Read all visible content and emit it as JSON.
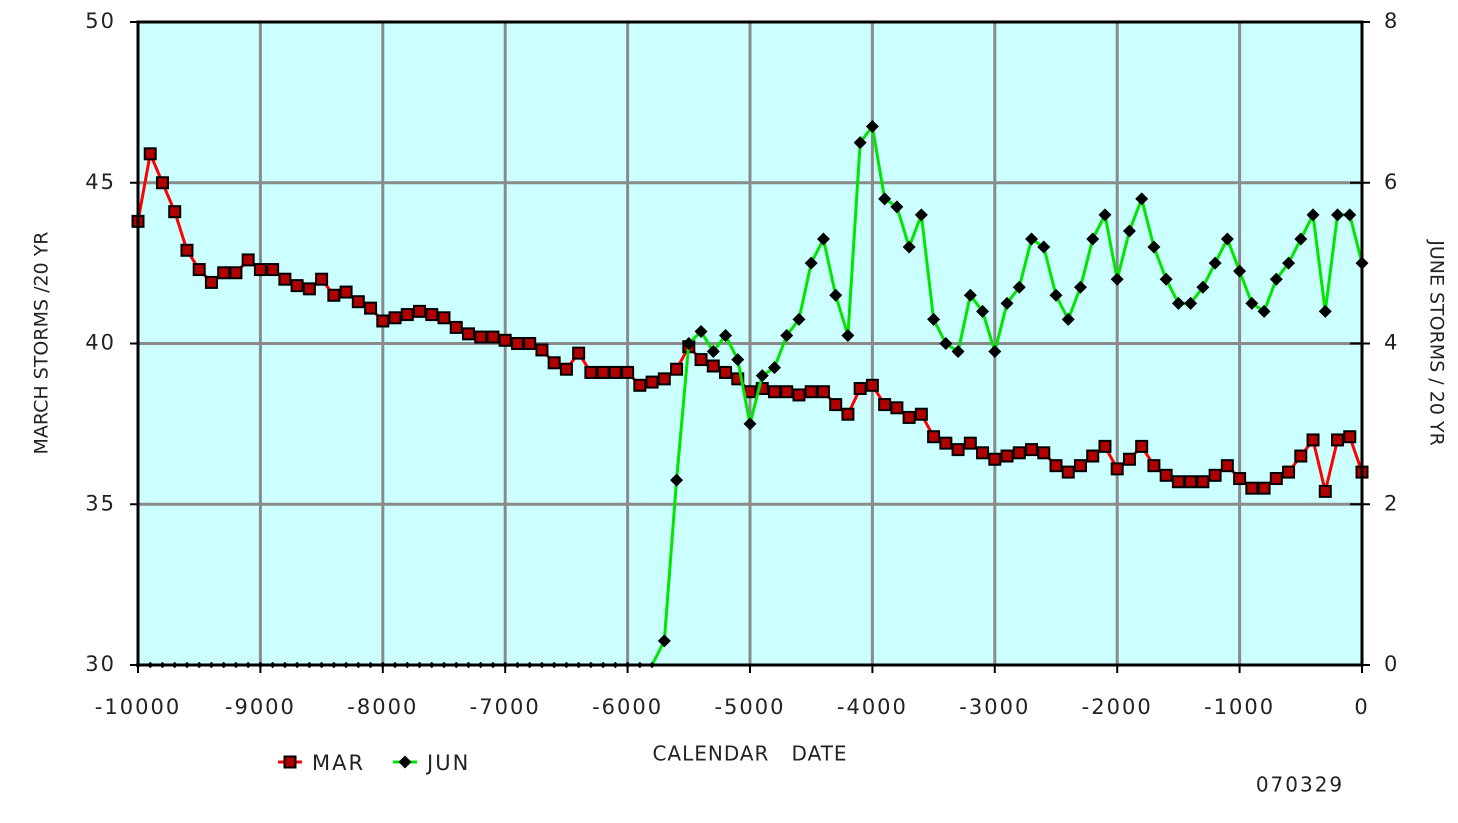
{
  "chart_data": {
    "type": "line",
    "xlabel": "CALENDAR   DATE",
    "ylabel": "MARCH STORMS /20 YR",
    "y2label": "JUNE STORMS / 20 YR",
    "annotation": "070329",
    "x": [
      -10000,
      -9900,
      -9800,
      -9700,
      -9600,
      -9500,
      -9400,
      -9300,
      -9200,
      -9100,
      -9000,
      -8900,
      -8800,
      -8700,
      -8600,
      -8500,
      -8400,
      -8300,
      -8200,
      -8100,
      -8000,
      -7900,
      -7800,
      -7700,
      -7600,
      -7500,
      -7400,
      -7300,
      -7200,
      -7100,
      -7000,
      -6900,
      -6800,
      -6700,
      -6600,
      -6500,
      -6400,
      -6300,
      -6200,
      -6100,
      -6000,
      -5900,
      -5800,
      -5700,
      -5600,
      -5500,
      -5400,
      -5300,
      -5200,
      -5100,
      -5000,
      -4900,
      -4800,
      -4700,
      -4600,
      -4500,
      -4400,
      -4300,
      -4200,
      -4100,
      -4000,
      -3900,
      -3800,
      -3700,
      -3600,
      -3500,
      -3400,
      -3300,
      -3200,
      -3100,
      -3000,
      -2900,
      -2800,
      -2700,
      -2600,
      -2500,
      -2400,
      -2300,
      -2200,
      -2100,
      -2000,
      -1900,
      -1800,
      -1700,
      -1600,
      -1500,
      -1400,
      -1300,
      -1200,
      -1100,
      -1000,
      -900,
      -800,
      -700,
      -600,
      -500,
      -400,
      -300,
      -200,
      -100,
      0
    ],
    "series": [
      {
        "name": "MAR",
        "color": "#ff0000",
        "marker_color": "#b00000",
        "marker": "square",
        "values": [
          43.8,
          45.9,
          45.0,
          44.1,
          42.9,
          42.3,
          41.9,
          42.2,
          42.2,
          42.6,
          42.3,
          42.3,
          42.0,
          41.8,
          41.7,
          42.0,
          41.5,
          41.6,
          41.3,
          41.1,
          40.7,
          40.8,
          40.9,
          41.0,
          40.9,
          40.8,
          40.5,
          40.3,
          40.2,
          40.2,
          40.1,
          40.0,
          40.0,
          39.8,
          39.4,
          39.2,
          39.7,
          39.1,
          39.1,
          39.1,
          39.1,
          38.7,
          38.8,
          38.9,
          39.2,
          39.9,
          39.5,
          39.3,
          39.1,
          38.9,
          38.5,
          38.6,
          38.5,
          38.5,
          38.4,
          38.5,
          38.5,
          38.1,
          37.8,
          38.6,
          38.7,
          38.1,
          38.0,
          37.7,
          37.8,
          37.1,
          36.9,
          36.7,
          36.9,
          36.6,
          36.4,
          36.5,
          36.6,
          36.7,
          36.6,
          36.2,
          36.0,
          36.2,
          36.5,
          36.8,
          36.1,
          36.4,
          36.8,
          36.2,
          35.9,
          35.7,
          35.7,
          35.7,
          35.9,
          36.2,
          35.8,
          35.5,
          35.5,
          35.8,
          36.0,
          36.5,
          37.0,
          35.4,
          37.0,
          37.1,
          36.0
        ]
      },
      {
        "name": "JUN",
        "color": "#00e600",
        "marker_color": "#000000",
        "marker": "diamond",
        "axis": "y2",
        "values": [
          0,
          0,
          0,
          0,
          0,
          0,
          0,
          0,
          0,
          0,
          0,
          0,
          0,
          0,
          0,
          0,
          0,
          0,
          0,
          0,
          0,
          0,
          0,
          0,
          0,
          0,
          0,
          0,
          0,
          0,
          0,
          0,
          0,
          0,
          0,
          0,
          0,
          0,
          0,
          0,
          0,
          0,
          0,
          0.3,
          2.3,
          4.0,
          4.15,
          3.9,
          4.1,
          3.8,
          3.0,
          3.6,
          3.7,
          4.1,
          4.3,
          5.0,
          5.3,
          4.6,
          4.1,
          6.5,
          6.7,
          5.8,
          5.7,
          5.2,
          5.6,
          4.3,
          4.0,
          3.9,
          4.6,
          4.4,
          3.9,
          4.5,
          4.7,
          5.3,
          5.2,
          4.6,
          4.3,
          4.7,
          5.3,
          5.6,
          4.8,
          5.4,
          5.8,
          5.2,
          4.8,
          4.5,
          4.5,
          4.7,
          5.0,
          5.3,
          4.9,
          4.5,
          4.4,
          4.8,
          5.0,
          5.3,
          5.6,
          4.4,
          5.6,
          5.6,
          5.0
        ]
      }
    ],
    "xlim": [
      -10000,
      0
    ],
    "xticks": [
      -10000,
      -9000,
      -8000,
      -7000,
      -6000,
      -5000,
      -4000,
      -3000,
      -2000,
      -1000,
      0
    ],
    "ylim": [
      30,
      50
    ],
    "yticks": [
      30,
      35,
      40,
      45,
      50
    ],
    "y2lim": [
      0,
      8
    ],
    "y2ticks": [
      0,
      2,
      4,
      6,
      8
    ],
    "grid": true,
    "background": "#ccffff",
    "legend": "bottom-left"
  }
}
